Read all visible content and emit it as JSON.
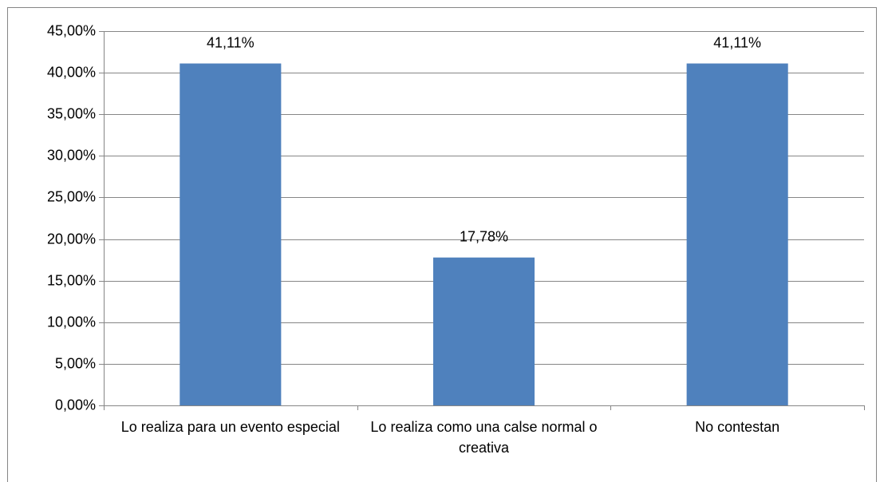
{
  "chart_data": {
    "type": "bar",
    "categories": [
      "Lo realiza para un evento especial",
      "Lo realiza como una calse normal o creativa",
      "No contestan"
    ],
    "values": [
      41.11,
      17.78,
      41.11
    ],
    "value_labels": [
      "41,11%",
      "17,78%",
      "41,11%"
    ],
    "color": "#4f81bd",
    "ylim": [
      0,
      45
    ],
    "yticks": [
      {
        "value": 0,
        "label": "0,00%"
      },
      {
        "value": 5,
        "label": "5,00%"
      },
      {
        "value": 10,
        "label": "10,00%"
      },
      {
        "value": 15,
        "label": "15,00%"
      },
      {
        "value": 20,
        "label": "20,00%"
      },
      {
        "value": 25,
        "label": "25,00%"
      },
      {
        "value": 30,
        "label": "30,00%"
      },
      {
        "value": 35,
        "label": "35,00%"
      },
      {
        "value": 40,
        "label": "40,00%"
      },
      {
        "value": 45,
        "label": "45,00%"
      }
    ],
    "grid": true
  }
}
